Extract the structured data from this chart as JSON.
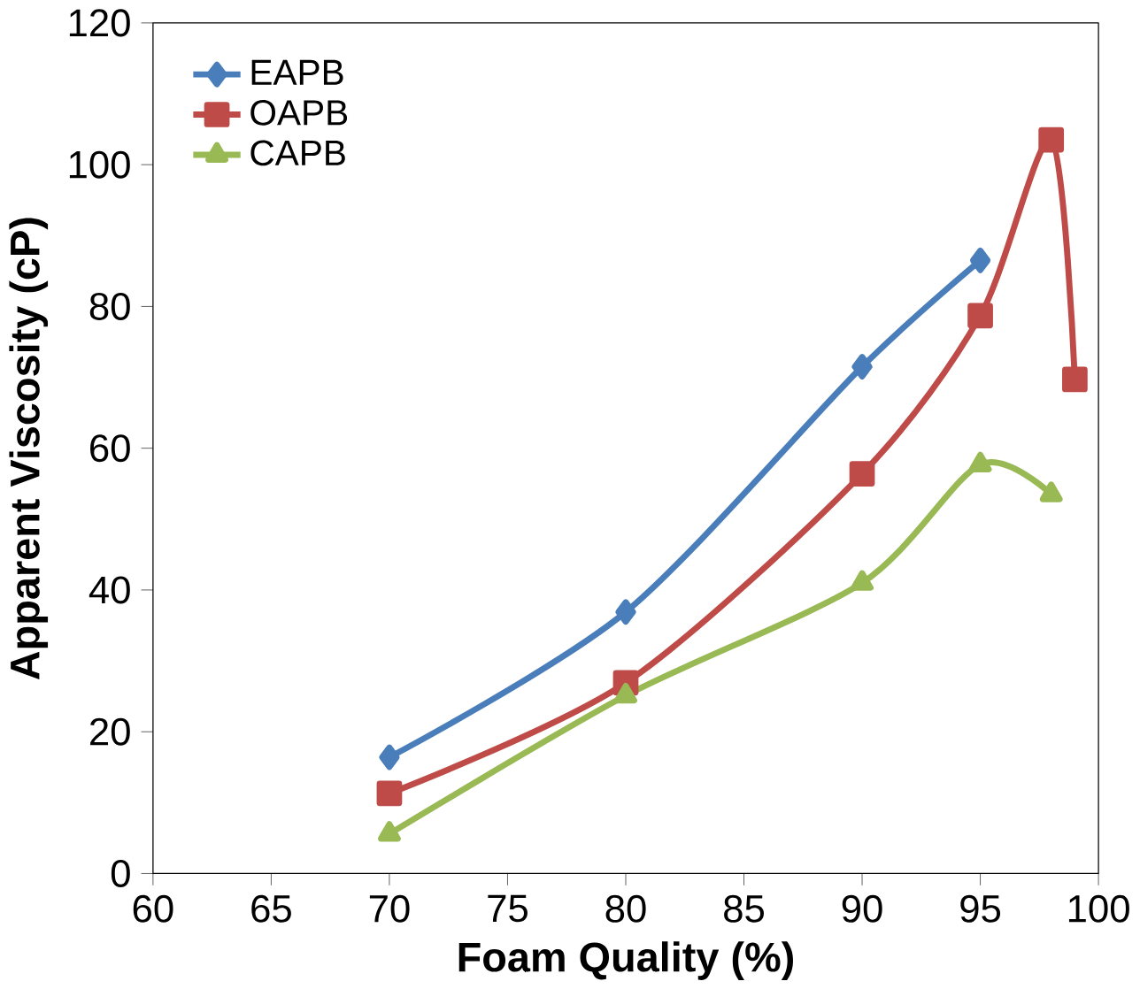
{
  "chart_data": {
    "type": "line",
    "xlabel": "Foam Quality (%)",
    "ylabel": "Apparent Viscosity (cP)",
    "xlim": [
      60,
      100
    ],
    "xticks": [
      60,
      65,
      70,
      75,
      80,
      85,
      90,
      95,
      100
    ],
    "ylim": [
      0,
      120
    ],
    "yticks": [
      0,
      20,
      40,
      60,
      80,
      100,
      120
    ],
    "legend": "top left",
    "grid": false,
    "series": [
      {
        "name": "EAPB",
        "color": "#4a7ebb",
        "marker": "diamond",
        "x": [
          70,
          80,
          90,
          95
        ],
        "values": [
          16.4,
          36.9,
          71.5,
          86.5
        ]
      },
      {
        "name": "OAPB",
        "color": "#be4b48",
        "marker": "square",
        "x": [
          70,
          80,
          90,
          95,
          98,
          99
        ],
        "values": [
          11.3,
          26.9,
          56.4,
          78.7,
          103.5,
          69.7
        ]
      },
      {
        "name": "CAPB",
        "color": "#98b954",
        "marker": "triangle",
        "x": [
          70,
          80,
          90,
          95,
          98
        ],
        "values": [
          5.6,
          25.1,
          41,
          57.7,
          53.5
        ]
      }
    ]
  }
}
